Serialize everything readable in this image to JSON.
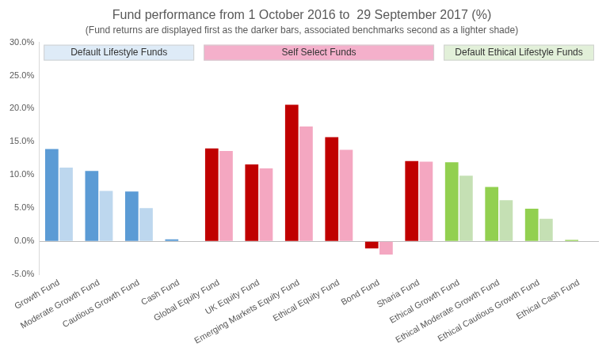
{
  "chart_data": {
    "type": "bar",
    "title": "Fund performance from 1 October 2016 to  29 September 2017 (%)",
    "subtitle": "(Fund returns are displayed first as the darker bars, associated benchmarks second as a lighter shade)",
    "categories": [
      "Growth Fund",
      "Moderate Growth Fund",
      "Cautious Growth Fund",
      "Cash Fund",
      "Global Equity Fund",
      "UK Equity Fund",
      "Emerging Markets Equity Fund",
      "Ethical Equity Fund",
      "Bond Fund",
      "Sharia Fund",
      "Ethical Growth Fund",
      "Ethical Moderate Growth Fund",
      "Ethical Cautious Growth Fund",
      "Ethical Cash Fund"
    ],
    "series": [
      {
        "colors": [
          "#5b9bd5",
          "#5b9bd5",
          "#5b9bd5",
          "#5b9bd5",
          "#c00000",
          "#c00000",
          "#c00000",
          "#c00000",
          "#c00000",
          "#c00000",
          "#92d050",
          "#92d050",
          "#92d050",
          "#92d050"
        ],
        "values": [
          13.9,
          10.6,
          7.5,
          0.3,
          14.0,
          11.6,
          20.6,
          15.7,
          -1.1,
          12.1,
          11.9,
          8.2,
          4.9,
          0.2
        ]
      },
      {
        "colors": [
          "#bdd7ee",
          "#bdd7ee",
          "#bdd7ee",
          "#bdd7ee",
          "#f4a7c1",
          "#f4a7c1",
          "#f4a7c1",
          "#f4a7c1",
          "#f4a7c1",
          "#f4a7c1",
          "#c5e0b4",
          "#c5e0b4",
          "#c5e0b4",
          "#c5e0b4"
        ],
        "values": [
          11.1,
          7.6,
          5.0,
          0.0,
          13.6,
          11.0,
          17.3,
          13.8,
          -2.0,
          12.0,
          9.9,
          6.2,
          3.4,
          0.0
        ]
      }
    ],
    "ylim": [
      -5,
      30
    ],
    "yticks": [
      {
        "value": -5,
        "label": "-5.0%"
      },
      {
        "value": 0,
        "label": "0.0%"
      },
      {
        "value": 5,
        "label": "5.0%"
      },
      {
        "value": 10,
        "label": "10.0%"
      },
      {
        "value": 15,
        "label": "15.0%"
      },
      {
        "value": 20,
        "label": "20.0%"
      },
      {
        "value": 25,
        "label": "25.0%"
      },
      {
        "value": 30,
        "label": "30.0%"
      }
    ],
    "grid": false,
    "groups": [
      {
        "label": "Default Lifestyle Funds",
        "color": "#deebf7",
        "categories": [
          "Growth Fund",
          "Moderate Growth Fund",
          "Cautious Growth Fund",
          "Cash Fund"
        ]
      },
      {
        "label": "Self Select Funds",
        "color": "#f4b0cb",
        "categories": [
          "Global Equity Fund",
          "UK Equity Fund",
          "Emerging Markets Equity Fund",
          "Ethical Equity Fund",
          "Bond Fund",
          "Sharia Fund"
        ]
      },
      {
        "label": "Default Ethical Lifestyle Funds",
        "color": "#e2f0d9",
        "categories": [
          "Ethical Growth Fund",
          "Ethical Moderate Growth Fund",
          "Ethical Cautious Growth Fund",
          "Ethical Cash Fund"
        ]
      }
    ]
  }
}
